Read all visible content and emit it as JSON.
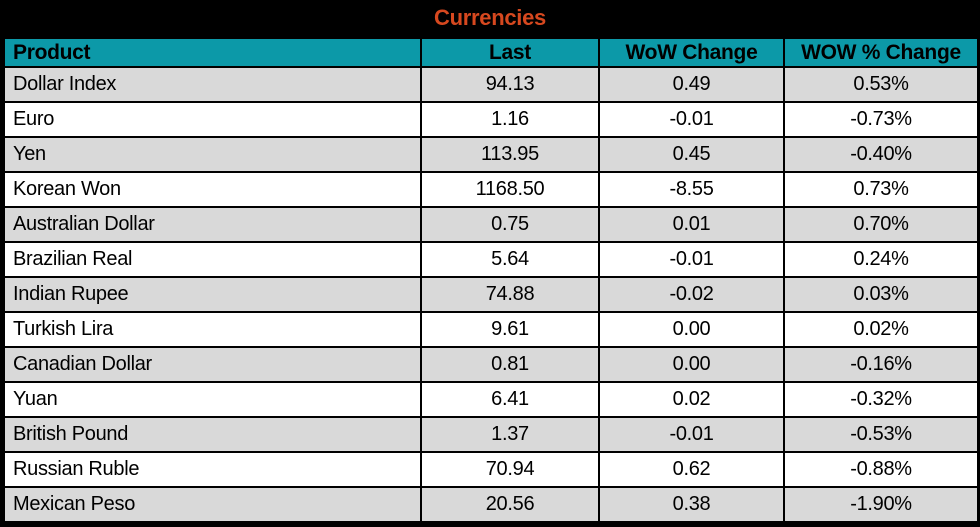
{
  "chart_data": {
    "type": "table",
    "title": "Currencies",
    "columns": [
      "Product",
      "Last",
      "WoW Change",
      "WOW % Change"
    ],
    "rows": [
      [
        "Dollar Index",
        "94.13",
        "0.49",
        "0.53%"
      ],
      [
        "Euro",
        "1.16",
        "-0.01",
        "-0.73%"
      ],
      [
        "Yen",
        "113.95",
        "0.45",
        "-0.40%"
      ],
      [
        "Korean Won",
        "1168.50",
        "-8.55",
        "0.73%"
      ],
      [
        "Australian Dollar",
        "0.75",
        "0.01",
        "0.70%"
      ],
      [
        "Brazilian Real",
        "5.64",
        "-0.01",
        "0.24%"
      ],
      [
        "Indian Rupee",
        "74.88",
        "-0.02",
        "0.03%"
      ],
      [
        "Turkish Lira",
        "9.61",
        "0.00",
        "0.02%"
      ],
      [
        "Canadian Dollar",
        "0.81",
        "0.00",
        "-0.16%"
      ],
      [
        "Yuan",
        "6.41",
        "0.02",
        "-0.32%"
      ],
      [
        "British Pound",
        "1.37",
        "-0.01",
        "-0.53%"
      ],
      [
        "Russian Ruble",
        "70.94",
        "0.62",
        "-0.88%"
      ],
      [
        "Mexican Peso",
        "20.56",
        "0.38",
        "-1.90%"
      ]
    ]
  },
  "colors": {
    "title_text": "#D6481F",
    "header_bg": "#0C99A8",
    "row_shaded": "#D9D9D9",
    "row_plain": "#FFFFFF",
    "grid": "#000000",
    "cell_text": "#000000"
  }
}
